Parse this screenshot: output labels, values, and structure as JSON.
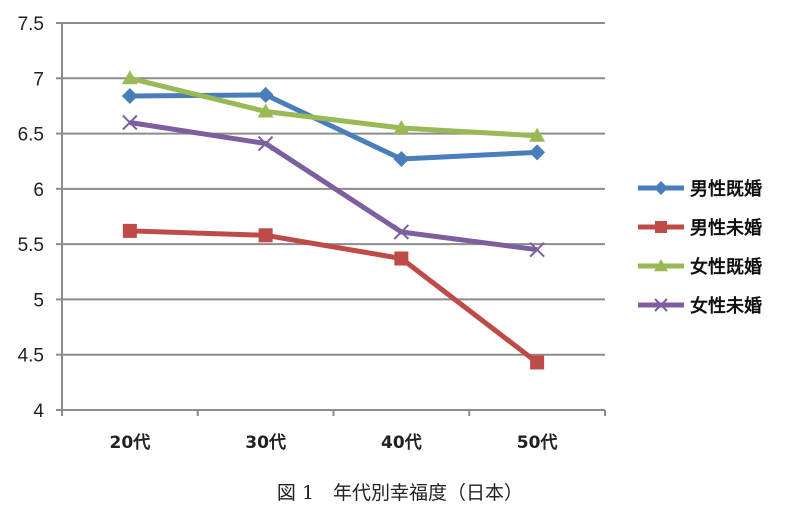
{
  "caption": "図 1　年代別幸福度（日本）",
  "chart_data": {
    "type": "line",
    "title": "図 1　年代別幸福度（日本）",
    "xlabel": "",
    "ylabel": "",
    "categories": [
      "20代",
      "30代",
      "40代",
      "50代"
    ],
    "ylim": [
      4,
      7.5
    ],
    "yticks": [
      4,
      4.5,
      5,
      5.5,
      6,
      6.5,
      7,
      7.5
    ],
    "ytick_labels": [
      "4",
      "4.5",
      "5",
      "5.5",
      "6",
      "6.5",
      "7",
      "7.5"
    ],
    "grid": true,
    "legend_position": "right",
    "series": [
      {
        "name": "男性既婚",
        "color": "#4a7ebb",
        "marker": "diamond",
        "values": [
          6.84,
          6.85,
          6.27,
          6.33
        ]
      },
      {
        "name": "男性未婚",
        "color": "#be4b48",
        "marker": "square",
        "values": [
          5.62,
          5.58,
          5.37,
          4.43
        ]
      },
      {
        "name": "女性既婚",
        "color": "#98b954",
        "marker": "triangle",
        "values": [
          7.0,
          6.7,
          6.55,
          6.48
        ]
      },
      {
        "name": "女性未婚",
        "color": "#7d5fa0",
        "marker": "x",
        "values": [
          6.6,
          6.41,
          5.61,
          5.45
        ]
      }
    ]
  }
}
